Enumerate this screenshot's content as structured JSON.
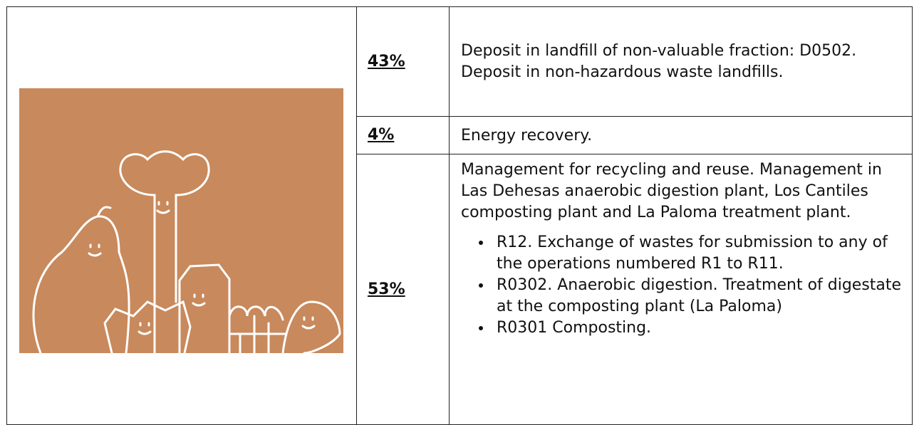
{
  "table": {
    "rows": [
      {
        "percent": "43%",
        "description": "Deposit in landfill of non-valuable fraction: D0502. Deposit in non-hazardous waste landfills."
      },
      {
        "percent": "4%",
        "description": "Energy recovery."
      },
      {
        "percent": "53%",
        "description": "Management for recycling and reuse. Management in Las Dehesas anaerobic digestion plant, Los Cantiles composting plant and La Paloma treatment plant.",
        "bullets": [
          "R12. Exchange of wastes for submission to any of the operations numbered R1 to R11.",
          "R0302. Anaerobic digestion. Treatment of digestate at the composting plant (La Paloma)",
          "R0301 Composting."
        ]
      }
    ]
  }
}
